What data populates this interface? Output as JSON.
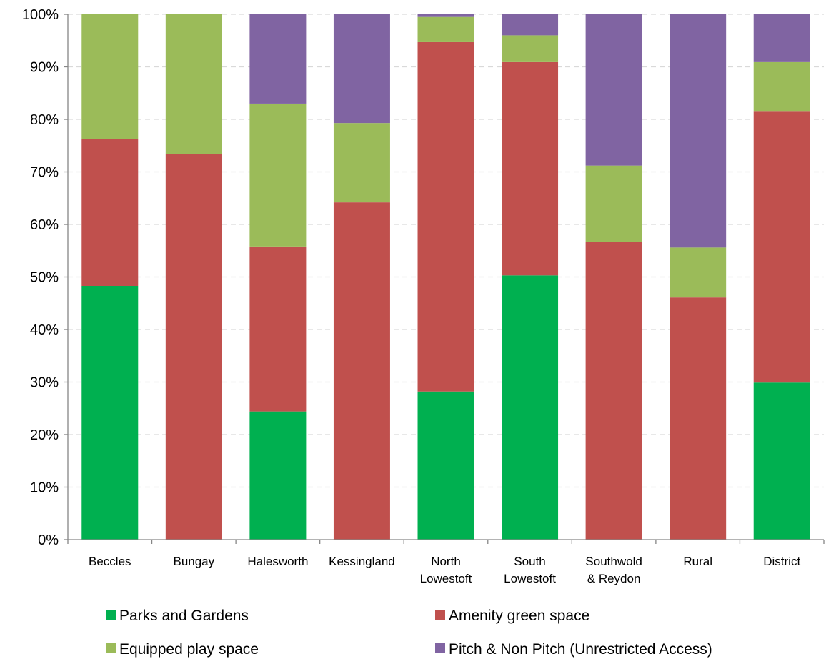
{
  "chart_data": {
    "type": "bar",
    "stacked": true,
    "normalized": true,
    "categories": [
      [
        "Beccles"
      ],
      [
        "Bungay"
      ],
      [
        "Halesworth"
      ],
      [
        "Kessingland"
      ],
      [
        "North",
        "Lowestoft"
      ],
      [
        "South",
        "Lowestoft"
      ],
      [
        "Southwold",
        "& Reydon"
      ],
      [
        "Rural"
      ],
      [
        "District"
      ]
    ],
    "series": [
      {
        "name": "Parks and Gardens",
        "color": "#00b050",
        "values": [
          48.3,
          0,
          24.4,
          0,
          28.2,
          50.3,
          0,
          0,
          29.9
        ]
      },
      {
        "name": "Amenity green space",
        "color": "#c0504d",
        "values": [
          27.9,
          73.4,
          31.4,
          64.2,
          66.5,
          40.6,
          56.6,
          46.1,
          51.7
        ]
      },
      {
        "name": "Equipped play space",
        "color": "#9bbb59",
        "values": [
          23.8,
          26.6,
          27.2,
          15.1,
          4.8,
          5.1,
          14.6,
          9.5,
          9.3
        ]
      },
      {
        "name": "Pitch & Non Pitch (Unrestricted Access)",
        "color": "#8064a2",
        "values": [
          0,
          0,
          17.0,
          20.7,
          0.5,
          4.0,
          28.8,
          44.4,
          9.1
        ]
      }
    ],
    "yticks": [
      "0%",
      "10%",
      "20%",
      "30%",
      "40%",
      "50%",
      "60%",
      "70%",
      "80%",
      "90%",
      "100%"
    ],
    "ylim": [
      0,
      100
    ],
    "grid": true,
    "legend_position": "bottom",
    "title": "",
    "xlabel": "",
    "ylabel": ""
  }
}
